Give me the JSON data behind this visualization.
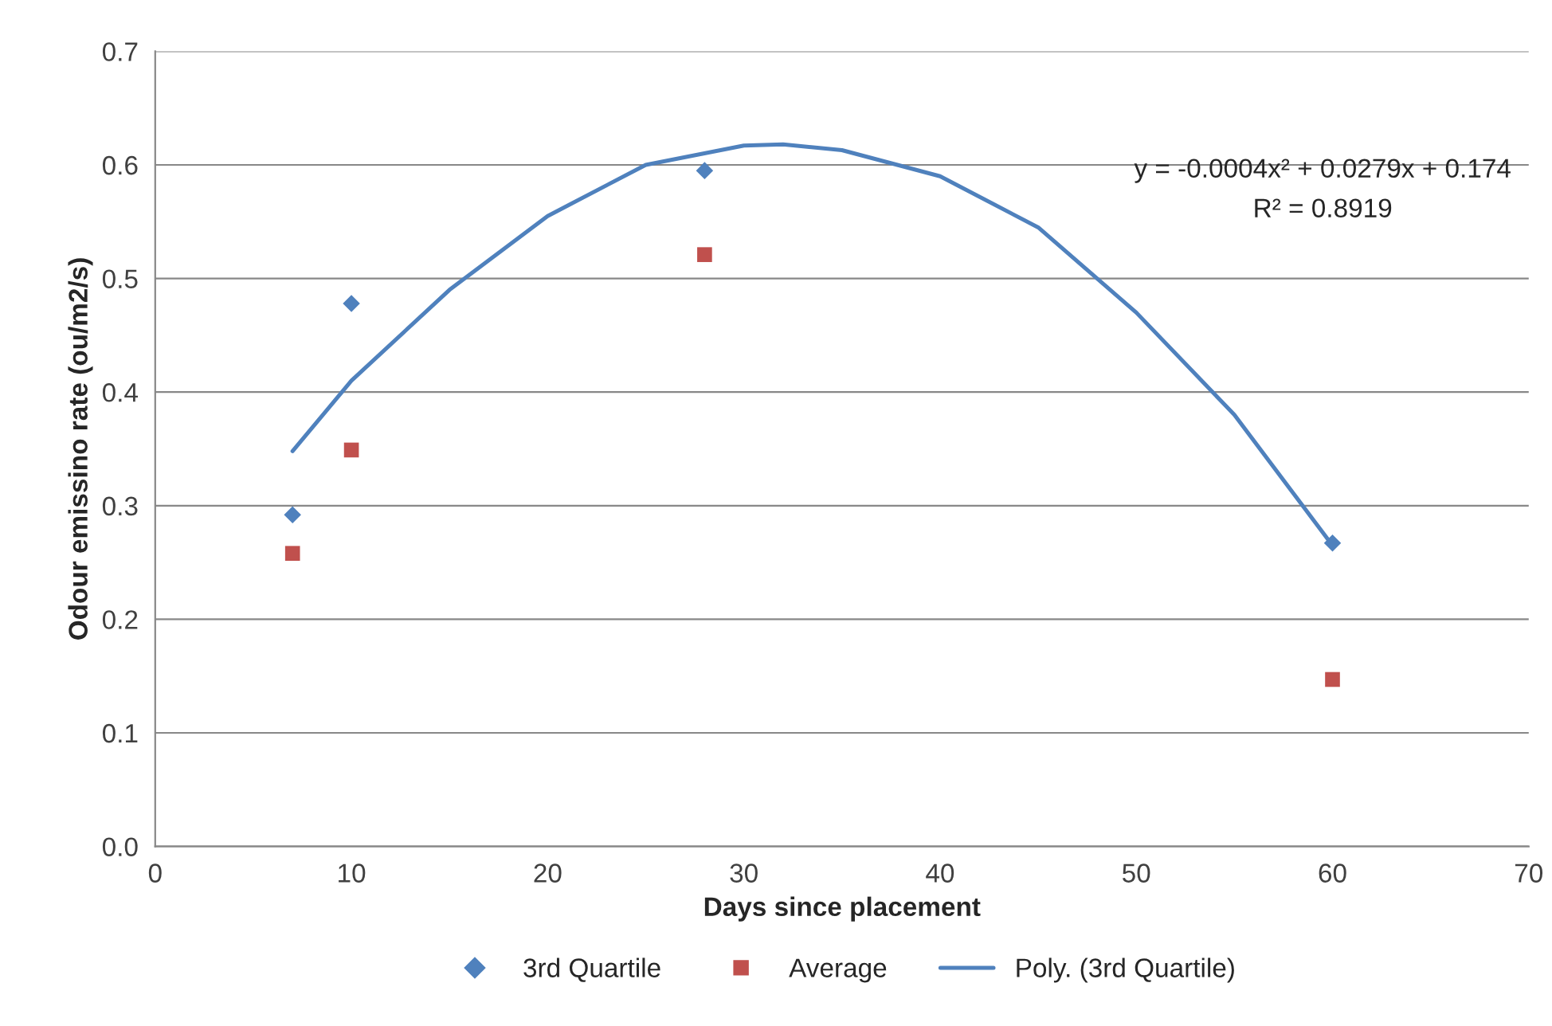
{
  "chart_data": {
    "type": "scatter",
    "xlabel": "Days since placement",
    "ylabel": "Odour emissino rate (ou/m2/s)",
    "xlim": [
      0,
      70
    ],
    "xticks": [
      0,
      10,
      20,
      30,
      40,
      50,
      60,
      70
    ],
    "ylim": [
      0.0,
      0.7
    ],
    "yticks": [
      {
        "value": 0.0,
        "label": "0.0"
      },
      0.1,
      0.2,
      0.3,
      0.4,
      0.5,
      0.6,
      0.7
    ],
    "grid": "y",
    "legend": "bottom",
    "annotations": [
      "y = -0.0004x² + 0.0279x + 0.174",
      "R² = 0.8919"
    ],
    "series": [
      {
        "name": "3rd Quartile",
        "marker": "diamond",
        "color": "#4f81bd",
        "x": [
          7,
          10,
          28,
          60
        ],
        "values": [
          0.292,
          0.478,
          0.595,
          0.267
        ]
      },
      {
        "name": "Average",
        "marker": "square",
        "color": "#c0504d",
        "x": [
          7,
          10,
          28,
          60
        ],
        "values": [
          0.258,
          0.349,
          0.521,
          0.147
        ]
      },
      {
        "name": "Poly. (3rd Quartile)",
        "type": "line",
        "marker": "none",
        "color": "#4f81bd",
        "x": [
          7,
          10,
          15,
          20,
          25,
          30,
          32,
          35,
          40,
          45,
          50,
          55,
          60
        ],
        "values": [
          0.348,
          0.41,
          0.49,
          0.555,
          0.6,
          0.617,
          0.618,
          0.613,
          0.59,
          0.545,
          0.47,
          0.38,
          0.265
        ]
      }
    ]
  }
}
